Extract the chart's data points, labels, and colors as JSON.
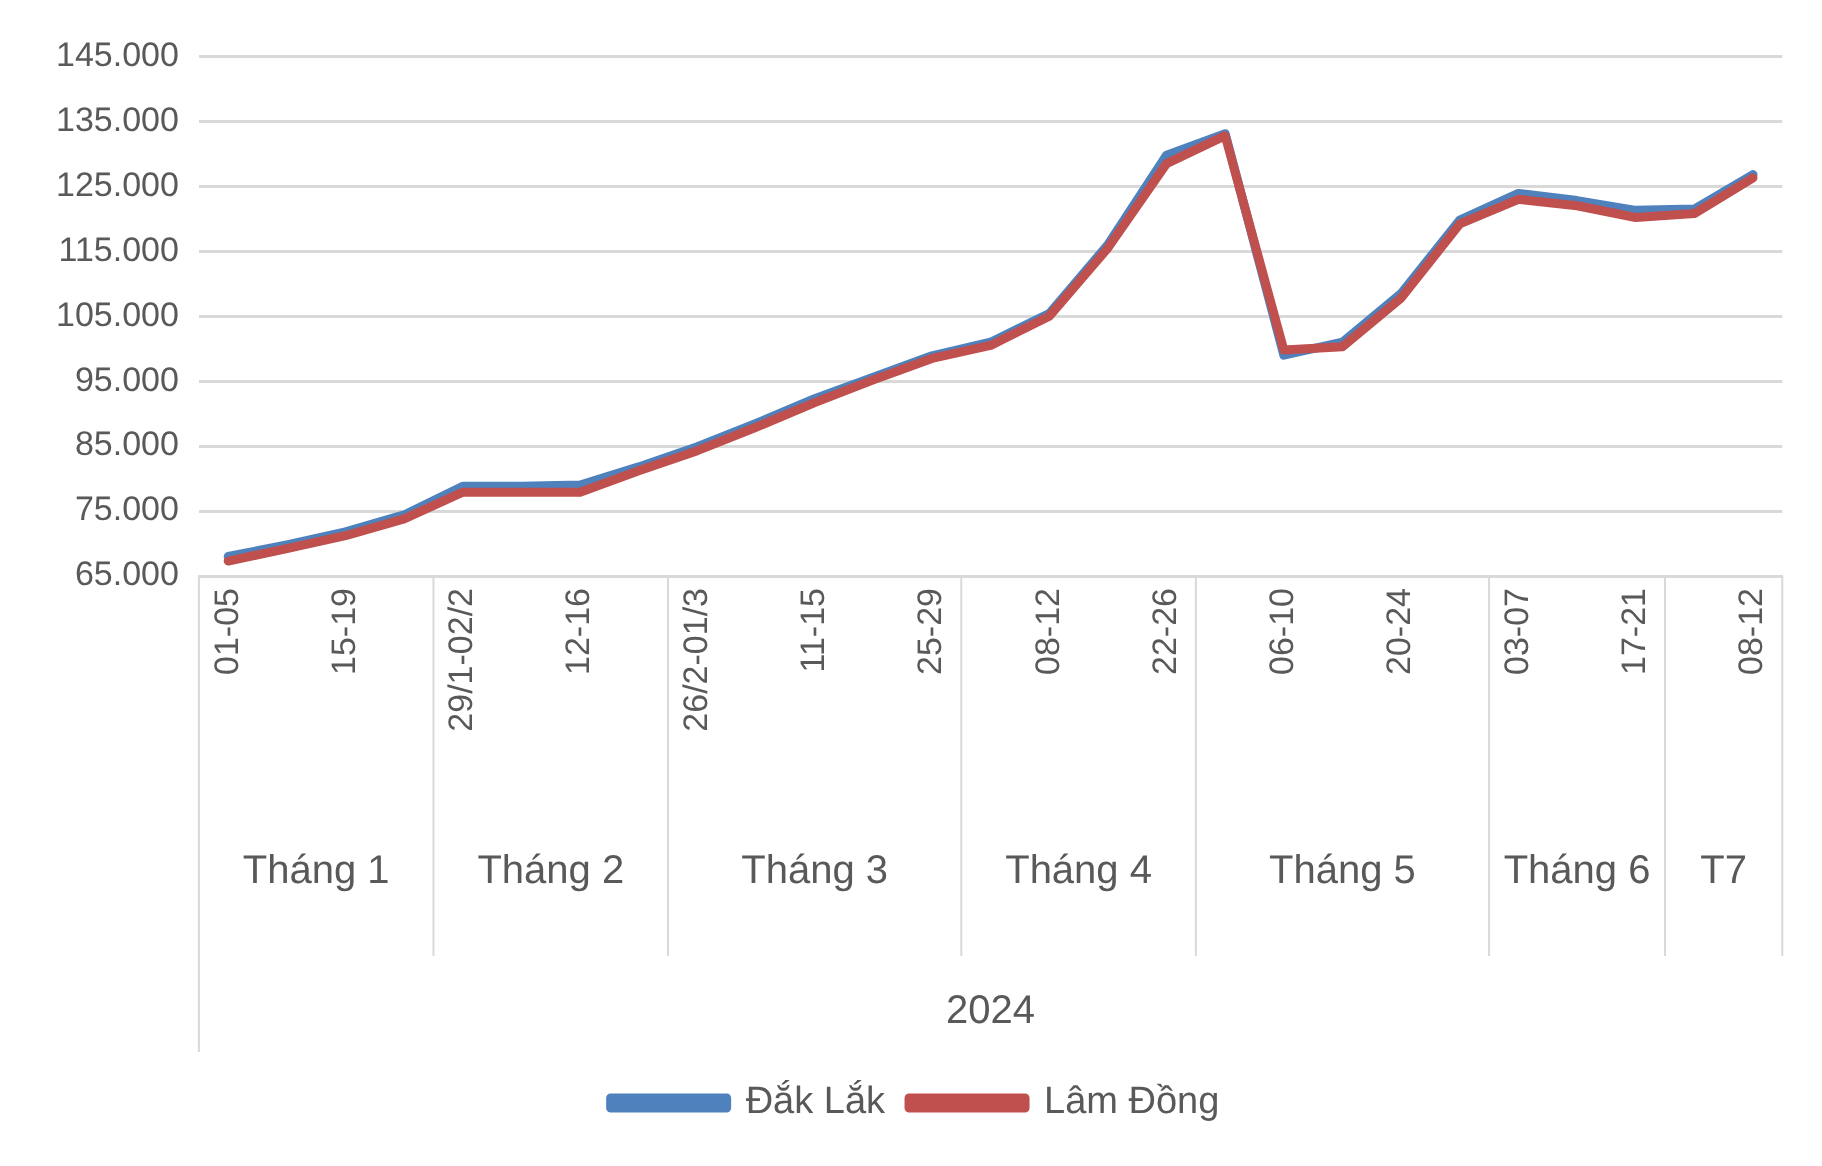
{
  "chart_data": {
    "type": "line",
    "categories": [
      "01-05",
      null,
      "15-19",
      null,
      "29/1-02/2",
      null,
      "12-16",
      null,
      "26/2-01/3",
      null,
      "11-15",
      null,
      "25-29",
      null,
      "08-12",
      null,
      "22-26",
      null,
      "06-10",
      null,
      "20-24",
      null,
      "03-07",
      null,
      "17-21",
      null,
      "08-12"
    ],
    "annotations": [
      "Tháng 1",
      "Tháng 2",
      "Tháng 3",
      "Tháng 4",
      "Tháng 5",
      "Tháng 6",
      "T7",
      "2024"
    ],
    "series": [
      {
        "name": "Đắk Lắk",
        "color": "#4f81bd",
        "values": [
          68000,
          69800,
          71800,
          74400,
          78800,
          78800,
          79000,
          81800,
          84900,
          88500,
          92300,
          95600,
          98900,
          101000,
          105400,
          116000,
          129800,
          133100,
          99000,
          101000,
          108500,
          119800,
          123900,
          122800,
          121300,
          121500,
          126800
        ]
      },
      {
        "name": "Lâm Đồng",
        "color": "#c0504d",
        "values": [
          67300,
          69200,
          71200,
          73800,
          77900,
          77900,
          77900,
          81200,
          84300,
          87900,
          91700,
          95200,
          98500,
          100500,
          105000,
          115500,
          128500,
          132800,
          99800,
          100300,
          107800,
          119200,
          123000,
          122000,
          120200,
          120800,
          126300
        ]
      }
    ],
    "ylim": [
      65000,
      145000
    ],
    "yticks": [
      {
        "value": 65000,
        "label": "65.000"
      },
      {
        "value": 75000,
        "label": "75.000"
      },
      {
        "value": 85000,
        "label": "85.000"
      },
      {
        "value": 95000,
        "label": "95.000"
      },
      {
        "value": 105000,
        "label": "105.000"
      },
      {
        "value": 115000,
        "label": "115.000"
      },
      {
        "value": 125000,
        "label": "125.000"
      },
      {
        "value": 135000,
        "label": "135.000"
      },
      {
        "value": 145000,
        "label": "145.000"
      }
    ],
    "grid": "y",
    "legend": "bottom",
    "marker": "none",
    "line_style": "solid"
  }
}
